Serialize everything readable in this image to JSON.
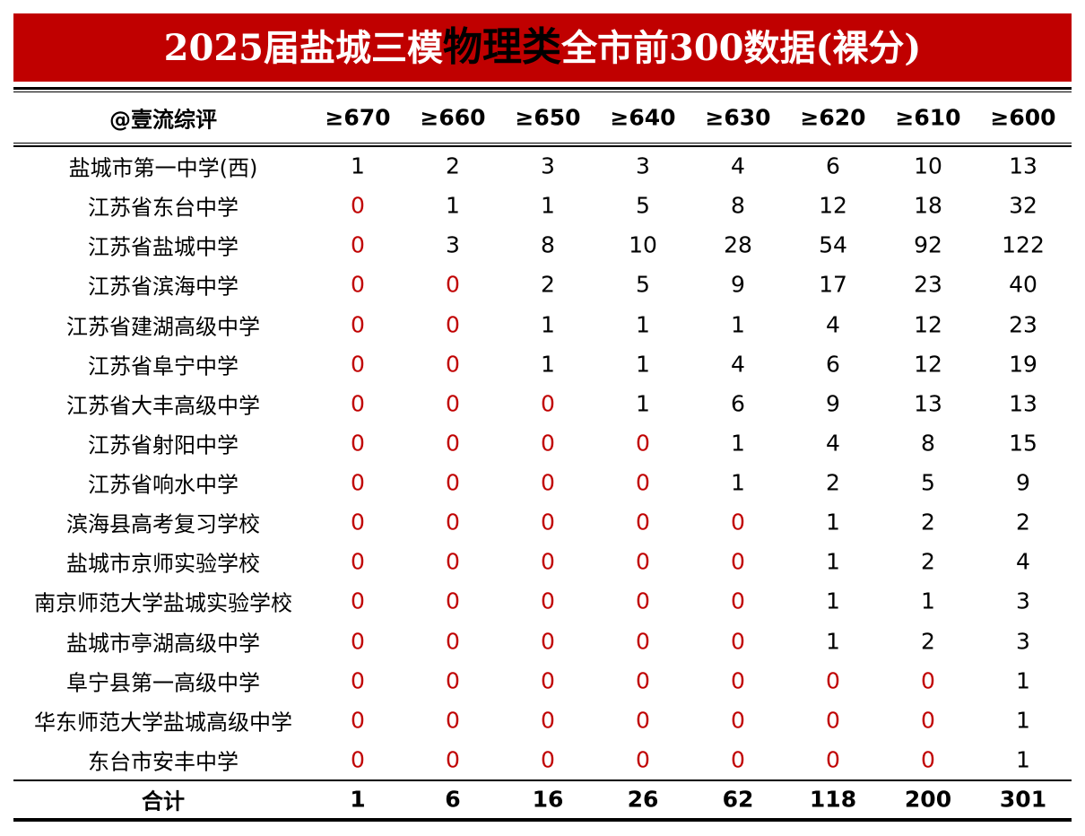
{
  "header": {
    "title": [
      "2025届盐城三模",
      "物理类",
      "全市前300数据(裸分)"
    ]
  },
  "table": {
    "columns": [
      "@壹流综评",
      "≥670",
      "≥660",
      "≥650",
      "≥640",
      "≥630",
      "≥620",
      "≥610",
      "≥600"
    ],
    "rows": [
      [
        "盐城市第一中学(西)",
        1,
        2,
        3,
        3,
        4,
        6,
        10,
        13
      ],
      [
        "江苏省东台中学",
        0,
        1,
        1,
        5,
        8,
        12,
        18,
        32
      ],
      [
        "江苏省盐城中学",
        0,
        3,
        8,
        10,
        28,
        54,
        92,
        122
      ],
      [
        "江苏省滨海中学",
        0,
        0,
        2,
        5,
        9,
        17,
        23,
        40
      ],
      [
        "江苏省建湖高级中学",
        0,
        0,
        1,
        1,
        1,
        4,
        12,
        23
      ],
      [
        "江苏省阜宁中学",
        0,
        0,
        1,
        1,
        4,
        6,
        12,
        19
      ],
      [
        "江苏省大丰高级中学",
        0,
        0,
        0,
        1,
        6,
        9,
        13,
        13
      ],
      [
        "江苏省射阳中学",
        0,
        0,
        0,
        0,
        1,
        4,
        8,
        15
      ],
      [
        "江苏省响水中学",
        0,
        0,
        0,
        0,
        1,
        2,
        5,
        9
      ],
      [
        "滨海县高考复习学校",
        0,
        0,
        0,
        0,
        0,
        1,
        2,
        2
      ],
      [
        "盐城市京师实验学校",
        0,
        0,
        0,
        0,
        0,
        1,
        2,
        4
      ],
      [
        "南京师范大学盐城实验学校",
        0,
        0,
        0,
        0,
        0,
        1,
        1,
        3
      ],
      [
        "盐城市亭湖高级中学",
        0,
        0,
        0,
        0,
        0,
        1,
        2,
        3
      ],
      [
        "阜宁县第一高级中学",
        0,
        0,
        0,
        0,
        0,
        0,
        0,
        1
      ],
      [
        "华东师范大学盐城高级中学",
        0,
        0,
        0,
        0,
        0,
        0,
        0,
        1
      ],
      [
        "东台市安丰中学",
        0,
        0,
        0,
        0,
        0,
        0,
        0,
        1
      ]
    ],
    "total": [
      "合计",
      1,
      6,
      16,
      26,
      62,
      118,
      200,
      301
    ],
    "zero_color": "#c00000"
  }
}
